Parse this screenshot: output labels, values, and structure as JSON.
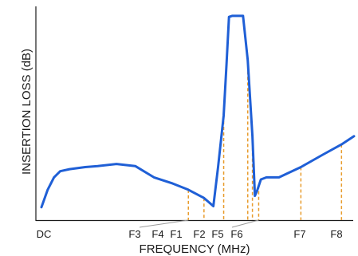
{
  "chart_data": {
    "type": "line",
    "title": "",
    "xlabel": "FREQUENCY (MHz)",
    "ylabel": "INSERTION LOSS (dB)",
    "xlim": [
      0,
      100
    ],
    "ylim": [
      0,
      100
    ],
    "grid": false,
    "legend": "none",
    "series": [
      {
        "x": [
          0,
          2,
          4,
          6,
          9,
          14,
          18,
          24,
          30,
          36,
          42,
          47,
          52,
          55,
          56.5,
          58.3,
          59.2,
          60,
          61,
          62,
          63.2,
          64.5,
          66,
          67.5,
          68.3,
          69.1,
          70.2,
          72,
          76,
          83,
          90,
          96,
          100
        ],
        "y": [
          5.5,
          14,
          20,
          23,
          24,
          25,
          25.5,
          26.5,
          25.5,
          20,
          17,
          14,
          10,
          6,
          25,
          50,
          75,
          98,
          98.5,
          98.5,
          98.5,
          98.5,
          77,
          40,
          11,
          14,
          19,
          20,
          20,
          25,
          31,
          36,
          40
        ]
      }
    ],
    "x_markers": [
      {
        "label": "DC",
        "x": 0,
        "y": null
      },
      {
        "label": "F3",
        "x": 47,
        "y": 14
      },
      {
        "label": "F4",
        "x": 52,
        "y": 10
      },
      {
        "label": "F1",
        "x": 58.3,
        "y": 50
      },
      {
        "label": "F2",
        "x": 66,
        "y": 77
      },
      {
        "label": "F5",
        "x": 67.5,
        "y": 40
      },
      {
        "label": "F6",
        "x": 69.5,
        "y": 16
      },
      {
        "label": "F7",
        "x": 83,
        "y": 25
      },
      {
        "label": "F8",
        "x": 96,
        "y": 36
      }
    ],
    "colors": {
      "line": "#1f5fd6",
      "marker": "#e89b2b",
      "axis": "#1a1a1a"
    }
  }
}
